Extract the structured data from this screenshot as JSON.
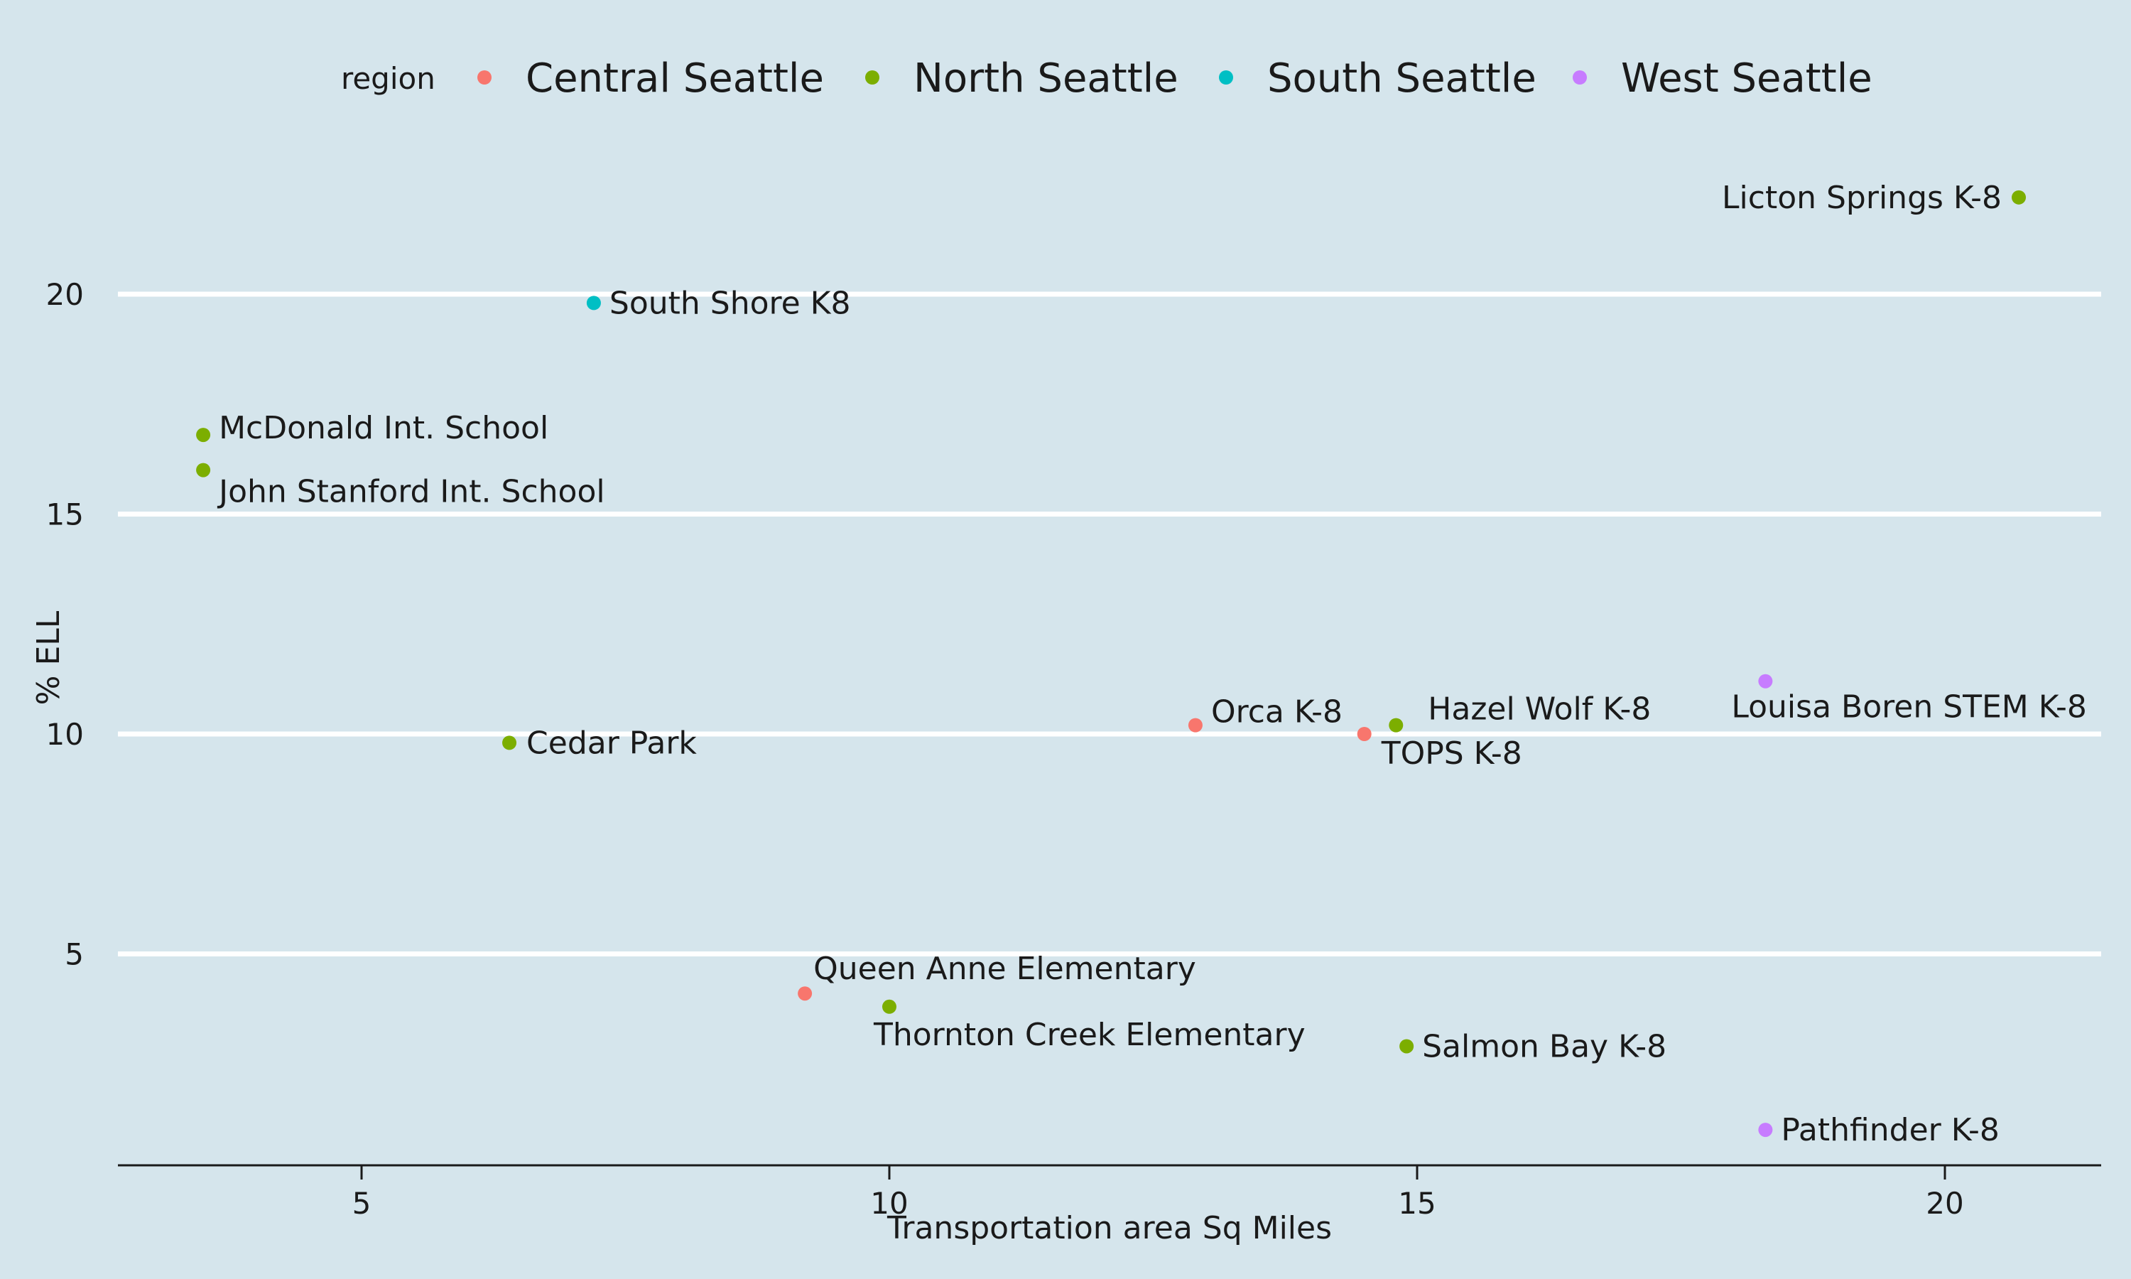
{
  "chart_data": {
    "type": "scatter",
    "title": "",
    "xlabel": "Transportation area Sq Miles",
    "ylabel": "% ELL",
    "xlim": [
      2.7,
      21.5
    ],
    "ylim": [
      0,
      23.5
    ],
    "xticks": [
      5,
      10,
      15,
      20
    ],
    "yticks": [
      5,
      10,
      15,
      20
    ],
    "grid": "horizontal",
    "background": "#d5e5ec",
    "legend": {
      "title": "region",
      "position": "top",
      "entries": [
        {
          "name": "Central Seattle",
          "color": "#f8766d"
        },
        {
          "name": "North Seattle",
          "color": "#7cae00"
        },
        {
          "name": "South Seattle",
          "color": "#00bfc4"
        },
        {
          "name": "West Seattle",
          "color": "#c77cff"
        }
      ]
    },
    "points": [
      {
        "label": "Licton Springs K-8",
        "x": 20.7,
        "y": 22.2,
        "region": "North Seattle"
      },
      {
        "label": "South Shore K8",
        "x": 7.2,
        "y": 19.8,
        "region": "South Seattle"
      },
      {
        "label": "McDonald Int. School",
        "x": 3.5,
        "y": 16.8,
        "region": "North Seattle"
      },
      {
        "label": "John Stanford Int. School",
        "x": 3.5,
        "y": 16.0,
        "region": "North Seattle"
      },
      {
        "label": "Louisa Boren STEM K-8",
        "x": 18.3,
        "y": 11.2,
        "region": "West Seattle"
      },
      {
        "label": "Orca K-8",
        "x": 12.9,
        "y": 10.2,
        "region": "Central Seattle"
      },
      {
        "label": "Hazel Wolf K-8",
        "x": 14.8,
        "y": 10.2,
        "region": "North Seattle"
      },
      {
        "label": "TOPS K-8",
        "x": 14.5,
        "y": 10.0,
        "region": "Central Seattle"
      },
      {
        "label": "Cedar Park",
        "x": 6.4,
        "y": 9.8,
        "region": "North Seattle"
      },
      {
        "label": "Queen Anne Elementary",
        "x": 9.2,
        "y": 4.1,
        "region": "Central Seattle"
      },
      {
        "label": "Thornton Creek Elementary",
        "x": 10.0,
        "y": 3.8,
        "region": "North Seattle"
      },
      {
        "label": "Salmon Bay K-8",
        "x": 14.9,
        "y": 2.9,
        "region": "North Seattle"
      },
      {
        "label": "Pathfinder K-8",
        "x": 18.3,
        "y": 1.0,
        "region": "West Seattle"
      }
    ]
  }
}
